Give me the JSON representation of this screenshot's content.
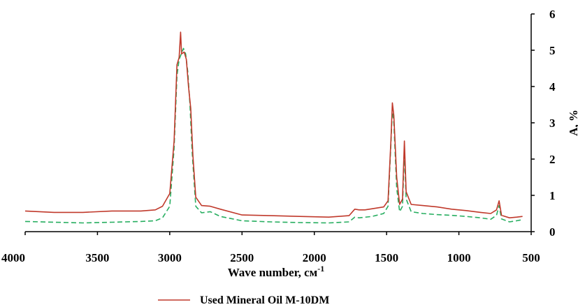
{
  "chart_data": {
    "type": "line",
    "title": "",
    "xlabel": "Wave number, см",
    "xlabel_sup": "-1",
    "ylabel": "A, %",
    "xlim": [
      4000,
      500
    ],
    "ylim": [
      0,
      6
    ],
    "x_reversed": true,
    "y_axis_side": "right",
    "grid": false,
    "x_ticks": [
      4000,
      3500,
      3000,
      2500,
      2000,
      1500,
      1000,
      500
    ],
    "y_ticks": [
      0,
      1,
      2,
      3,
      4,
      5,
      6
    ],
    "legend": {
      "placement": "bottom-center"
    },
    "series": [
      {
        "name": "Used Mineral Oil M-10DM",
        "color": "#c0392b",
        "style": "solid",
        "points": [
          [
            4000,
            0.57
          ],
          [
            3800,
            0.53
          ],
          [
            3600,
            0.53
          ],
          [
            3400,
            0.57
          ],
          [
            3200,
            0.57
          ],
          [
            3100,
            0.6
          ],
          [
            3050,
            0.7
          ],
          [
            3000,
            1.05
          ],
          [
            2970,
            2.5
          ],
          [
            2950,
            4.6
          ],
          [
            2935,
            4.8
          ],
          [
            2925,
            5.5
          ],
          [
            2918,
            4.9
          ],
          [
            2900,
            4.95
          ],
          [
            2885,
            4.75
          ],
          [
            2870,
            4.0
          ],
          [
            2855,
            3.4
          ],
          [
            2840,
            2.1
          ],
          [
            2820,
            0.95
          ],
          [
            2780,
            0.72
          ],
          [
            2720,
            0.7
          ],
          [
            2650,
            0.62
          ],
          [
            2500,
            0.46
          ],
          [
            2300,
            0.44
          ],
          [
            2100,
            0.42
          ],
          [
            1900,
            0.4
          ],
          [
            1760,
            0.44
          ],
          [
            1720,
            0.62
          ],
          [
            1690,
            0.6
          ],
          [
            1650,
            0.6
          ],
          [
            1600,
            0.63
          ],
          [
            1520,
            0.68
          ],
          [
            1490,
            0.85
          ],
          [
            1470,
            2.5
          ],
          [
            1460,
            3.55
          ],
          [
            1450,
            3.2
          ],
          [
            1430,
            1.5
          ],
          [
            1410,
            0.75
          ],
          [
            1390,
            0.9
          ],
          [
            1377,
            2.5
          ],
          [
            1365,
            1.1
          ],
          [
            1330,
            0.75
          ],
          [
            1250,
            0.72
          ],
          [
            1150,
            0.68
          ],
          [
            1050,
            0.62
          ],
          [
            950,
            0.58
          ],
          [
            850,
            0.53
          ],
          [
            780,
            0.5
          ],
          [
            740,
            0.6
          ],
          [
            722,
            0.85
          ],
          [
            705,
            0.45
          ],
          [
            650,
            0.38
          ],
          [
            600,
            0.4
          ],
          [
            560,
            0.42
          ]
        ]
      },
      {
        "name": "",
        "color": "#27ae60",
        "style": "dashed",
        "points": [
          [
            4000,
            0.28
          ],
          [
            3800,
            0.26
          ],
          [
            3600,
            0.24
          ],
          [
            3400,
            0.26
          ],
          [
            3200,
            0.28
          ],
          [
            3100,
            0.3
          ],
          [
            3050,
            0.38
          ],
          [
            3000,
            0.7
          ],
          [
            2970,
            2.3
          ],
          [
            2950,
            4.3
          ],
          [
            2935,
            4.75
          ],
          [
            2920,
            4.9
          ],
          [
            2905,
            5.05
          ],
          [
            2890,
            4.9
          ],
          [
            2875,
            4.4
          ],
          [
            2860,
            3.5
          ],
          [
            2845,
            2.2
          ],
          [
            2820,
            0.7
          ],
          [
            2780,
            0.52
          ],
          [
            2720,
            0.55
          ],
          [
            2650,
            0.42
          ],
          [
            2500,
            0.3
          ],
          [
            2300,
            0.27
          ],
          [
            2100,
            0.25
          ],
          [
            1900,
            0.24
          ],
          [
            1760,
            0.27
          ],
          [
            1720,
            0.4
          ],
          [
            1690,
            0.38
          ],
          [
            1600,
            0.42
          ],
          [
            1520,
            0.5
          ],
          [
            1490,
            0.7
          ],
          [
            1470,
            2.4
          ],
          [
            1460,
            3.4
          ],
          [
            1450,
            3.0
          ],
          [
            1430,
            1.2
          ],
          [
            1410,
            0.55
          ],
          [
            1390,
            0.7
          ],
          [
            1377,
            2.2
          ],
          [
            1365,
            0.9
          ],
          [
            1330,
            0.55
          ],
          [
            1250,
            0.5
          ],
          [
            1150,
            0.47
          ],
          [
            1050,
            0.45
          ],
          [
            950,
            0.42
          ],
          [
            850,
            0.38
          ],
          [
            780,
            0.34
          ],
          [
            740,
            0.45
          ],
          [
            722,
            0.72
          ],
          [
            705,
            0.35
          ],
          [
            650,
            0.27
          ],
          [
            600,
            0.3
          ],
          [
            560,
            0.33
          ]
        ]
      }
    ]
  }
}
